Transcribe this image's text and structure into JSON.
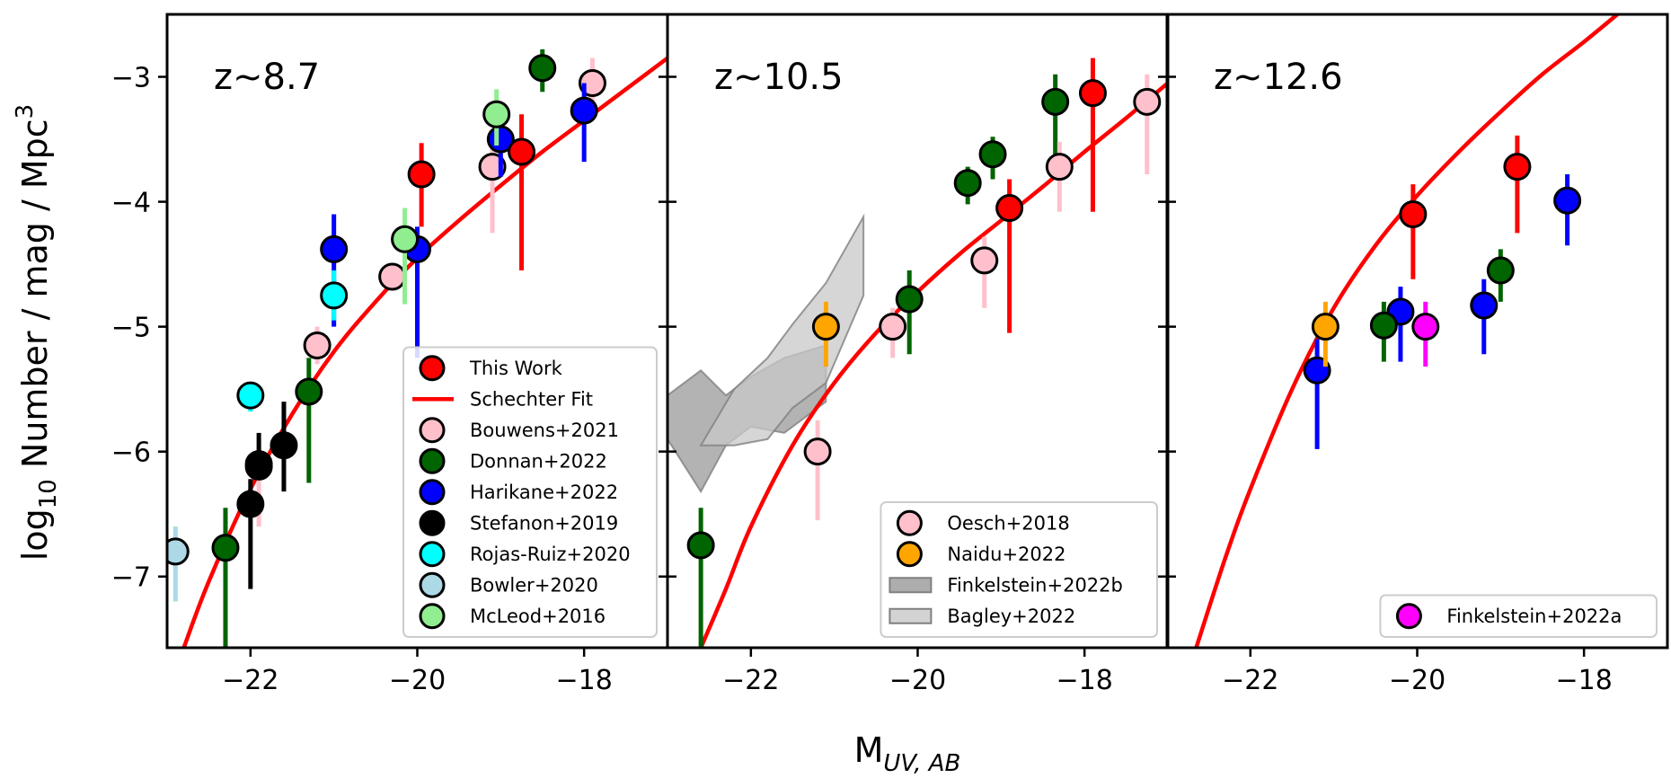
{
  "chart_data": {
    "type": "scatter",
    "x_label": {
      "main": "M",
      "sub": "UV, AB"
    },
    "y_label": {
      "prefix": "log",
      "sub": "10",
      "text": " Number / mag / Mpc",
      "sup": "3"
    },
    "xlim": [
      -23.0,
      -17.0
    ],
    "ylim": [
      -7.57,
      -2.5
    ],
    "x_ticks": [
      -22,
      -20,
      -18
    ],
    "x_tick_labels": [
      "−22",
      "−20",
      "−18"
    ],
    "y_ticks": [
      -3,
      -4,
      -5,
      -6,
      -7
    ],
    "y_tick_labels": [
      "−3",
      "−4",
      "−5",
      "−6",
      "−7"
    ],
    "colors": {
      "this_work": "#ff0000",
      "schechter": "#ff0000",
      "bouwens": "#ffc0cb",
      "donnan": "#006400",
      "harikane": "#0000ff",
      "stefanon": "#000000",
      "rojas": "#00ffff",
      "bowler": "#add8e6",
      "mcleod": "#90ee90",
      "oesch": "#ffc0cb",
      "naidu": "#ffa500",
      "finkelstein_a": "#ff00ff",
      "finkelstein_b_band": "#999999",
      "bagley_band": "#c8c8c8"
    },
    "panels": [
      {
        "label": "z~8.7",
        "schechter_curve": [
          [
            -22.8,
            -7.57
          ],
          [
            -22.5,
            -7.04
          ],
          [
            -22.0,
            -6.3
          ],
          [
            -21.5,
            -5.7
          ],
          [
            -21.0,
            -5.2
          ],
          [
            -20.5,
            -4.8
          ],
          [
            -20.0,
            -4.45
          ],
          [
            -19.5,
            -4.15
          ],
          [
            -19.0,
            -3.87
          ],
          [
            -18.5,
            -3.6
          ],
          [
            -18.0,
            -3.35
          ],
          [
            -17.5,
            -3.1
          ],
          [
            -17.0,
            -2.85
          ]
        ],
        "bands": [],
        "series": [
          {
            "name": "Bouwens+2021",
            "color_key": "bouwens",
            "points": [
              {
                "x": -21.9,
                "y": -6.1,
                "lo": -6.6,
                "hi": -5.9
              },
              {
                "x": -21.2,
                "y": -5.15,
                "lo": -5.3,
                "hi": -5.0
              },
              {
                "x": -20.3,
                "y": -4.6,
                "lo": -4.7,
                "hi": -4.5
              },
              {
                "x": -19.1,
                "y": -3.72,
                "lo": -4.25,
                "hi": -3.55
              },
              {
                "x": -17.9,
                "y": -3.05,
                "lo": -3.25,
                "hi": -2.85
              }
            ]
          },
          {
            "name": "Donnan+2022",
            "color_key": "donnan",
            "points": [
              {
                "x": -22.3,
                "y": -6.77,
                "lo": -7.6,
                "hi": -6.45
              },
              {
                "x": -21.3,
                "y": -5.52,
                "lo": -6.25,
                "hi": -5.25
              },
              {
                "x": -18.5,
                "y": -2.93,
                "lo": -3.12,
                "hi": -2.78
              }
            ]
          },
          {
            "name": "Harikane+2022",
            "color_key": "harikane",
            "points": [
              {
                "x": -21.0,
                "y": -4.38,
                "lo": -5.0,
                "hi": -4.1
              },
              {
                "x": -20.0,
                "y": -4.38,
                "lo": -5.25,
                "hi": -4.2
              },
              {
                "x": -19.0,
                "y": -3.5,
                "lo": -3.8,
                "hi": -3.35
              },
              {
                "x": -18.0,
                "y": -3.27,
                "lo": -3.68,
                "hi": -3.05
              }
            ]
          },
          {
            "name": "Stefanon+2019",
            "color_key": "stefanon",
            "points": [
              {
                "x": -22.0,
                "y": -6.42,
                "lo": -7.1,
                "hi": -6.22
              },
              {
                "x": -21.6,
                "y": -5.95,
                "lo": -6.32,
                "hi": -5.6
              },
              {
                "x": -21.9,
                "y": -6.12,
                "lo": -6.22,
                "hi": -5.85
              }
            ]
          },
          {
            "name": "Rojas-Ruiz+2020",
            "color_key": "rojas",
            "points": [
              {
                "x": -22.0,
                "y": -5.55,
                "lo": -5.68,
                "hi": -5.45
              },
              {
                "x": -21.0,
                "y": -4.75,
                "lo": -4.95,
                "hi": -4.55
              }
            ]
          },
          {
            "name": "Bowler+2020",
            "color_key": "bowler",
            "points": [
              {
                "x": -22.9,
                "y": -6.8,
                "lo": -7.2,
                "hi": -6.6
              }
            ]
          },
          {
            "name": "McLeod+2016",
            "color_key": "mcleod",
            "points": [
              {
                "x": -20.15,
                "y": -4.3,
                "lo": -4.82,
                "hi": -4.05
              },
              {
                "x": -19.05,
                "y": -3.3,
                "lo": -3.55,
                "hi": -3.1
              }
            ]
          },
          {
            "name": "This Work",
            "color_key": "this_work",
            "points": [
              {
                "x": -19.95,
                "y": -3.78,
                "lo": -4.2,
                "hi": -3.53
              },
              {
                "x": -18.75,
                "y": -3.6,
                "lo": -4.55,
                "hi": -3.3
              }
            ]
          }
        ],
        "legend": {
          "position": "lower-right",
          "entries": [
            {
              "label": "This Work",
              "kind": "marker",
              "color_key": "this_work"
            },
            {
              "label": "Schechter Fit",
              "kind": "line",
              "color_key": "schechter"
            },
            {
              "label": "Bouwens+2021",
              "kind": "marker",
              "color_key": "bouwens"
            },
            {
              "label": "Donnan+2022",
              "kind": "marker",
              "color_key": "donnan"
            },
            {
              "label": "Harikane+2022",
              "kind": "marker",
              "color_key": "harikane"
            },
            {
              "label": "Stefanon+2019",
              "kind": "marker",
              "color_key": "stefanon"
            },
            {
              "label": "Rojas-Ruiz+2020",
              "kind": "marker",
              "color_key": "rojas"
            },
            {
              "label": "Bowler+2020",
              "kind": "marker",
              "color_key": "bowler"
            },
            {
              "label": "McLeod+2016",
              "kind": "marker",
              "color_key": "mcleod"
            }
          ]
        }
      },
      {
        "label": "z~10.5",
        "schechter_curve": [
          [
            -22.6,
            -7.57
          ],
          [
            -22.3,
            -7.1
          ],
          [
            -22.0,
            -6.6
          ],
          [
            -21.5,
            -5.95
          ],
          [
            -21.0,
            -5.45
          ],
          [
            -20.5,
            -5.05
          ],
          [
            -20.0,
            -4.72
          ],
          [
            -19.5,
            -4.42
          ],
          [
            -19.0,
            -4.15
          ],
          [
            -18.5,
            -3.88
          ],
          [
            -18.0,
            -3.6
          ],
          [
            -17.5,
            -3.33
          ],
          [
            -17.0,
            -3.05
          ],
          [
            -16.8,
            -2.95
          ]
        ],
        "bands": [
          {
            "name": "Finkelstein+2022b",
            "color_key": "finkelstein_b_band",
            "opacity": 0.75,
            "x": [
              -23.0,
              -22.6,
              -22.3,
              -22.0,
              -21.6,
              -21.1
            ],
            "upper": [
              -5.55,
              -5.35,
              -5.55,
              -5.4,
              -5.25,
              -5.15
            ],
            "lower": [
              -5.9,
              -6.32,
              -5.95,
              -5.8,
              -5.85,
              -5.6
            ]
          },
          {
            "name": "Bagley+2022",
            "color_key": "bagley_band",
            "opacity": 0.75,
            "x": [
              -22.6,
              -22.2,
              -21.8,
              -21.5,
              -21.1,
              -20.65
            ],
            "upper": [
              -5.95,
              -5.5,
              -5.25,
              -4.98,
              -4.65,
              -4.12
            ],
            "lower": [
              -5.95,
              -5.95,
              -5.9,
              -5.65,
              -5.45,
              -4.75
            ]
          }
        ],
        "series": [
          {
            "name": "Donnan+2022",
            "color_key": "donnan",
            "points": [
              {
                "x": -22.6,
                "y": -6.75,
                "lo": -7.6,
                "hi": -6.45
              },
              {
                "x": -20.1,
                "y": -4.78,
                "lo": -5.22,
                "hi": -4.55
              },
              {
                "x": -19.4,
                "y": -3.85,
                "lo": -4.02,
                "hi": -3.72
              },
              {
                "x": -19.1,
                "y": -3.62,
                "lo": -3.82,
                "hi": -3.48
              },
              {
                "x": -18.35,
                "y": -3.2,
                "lo": -3.72,
                "hi": -2.98
              }
            ]
          },
          {
            "name": "Oesch+2018",
            "color_key": "oesch",
            "points": [
              {
                "x": -21.2,
                "y": -6.0,
                "lo": -6.55,
                "hi": -5.75
              },
              {
                "x": -20.3,
                "y": -5.0,
                "lo": -5.25,
                "hi": -4.85
              },
              {
                "x": -19.2,
                "y": -4.47,
                "lo": -4.85,
                "hi": -4.28
              },
              {
                "x": -18.3,
                "y": -3.72,
                "lo": -4.08,
                "hi": -3.52
              },
              {
                "x": -17.25,
                "y": -3.2,
                "lo": -3.78,
                "hi": -2.98
              }
            ]
          },
          {
            "name": "Naidu+2022",
            "color_key": "naidu",
            "points": [
              {
                "x": -21.1,
                "y": -5.0,
                "lo": -5.32,
                "hi": -4.8
              }
            ]
          },
          {
            "name": "This Work",
            "color_key": "this_work",
            "points": [
              {
                "x": -18.9,
                "y": -4.05,
                "lo": -5.05,
                "hi": -3.82
              },
              {
                "x": -17.9,
                "y": -3.13,
                "lo": -4.08,
                "hi": -2.85
              }
            ]
          }
        ],
        "legend": {
          "position": "lower-right",
          "entries": [
            {
              "label": "Oesch+2018",
              "kind": "marker",
              "color_key": "oesch"
            },
            {
              "label": "Naidu+2022",
              "kind": "marker",
              "color_key": "naidu"
            },
            {
              "label": "Finkelstein+2022b",
              "kind": "patch",
              "color_key": "finkelstein_b_band"
            },
            {
              "label": "Bagley+2022",
              "kind": "patch",
              "color_key": "bagley_band"
            }
          ]
        }
      },
      {
        "label": "z~12.6",
        "schechter_curve": [
          [
            -22.65,
            -7.57
          ],
          [
            -22.3,
            -6.85
          ],
          [
            -22.0,
            -6.3
          ],
          [
            -21.5,
            -5.5
          ],
          [
            -21.0,
            -4.85
          ],
          [
            -20.5,
            -4.35
          ],
          [
            -20.0,
            -3.95
          ],
          [
            -19.5,
            -3.6
          ],
          [
            -19.0,
            -3.28
          ],
          [
            -18.5,
            -2.98
          ],
          [
            -18.0,
            -2.72
          ],
          [
            -17.6,
            -2.5
          ]
        ],
        "bands": [],
        "series": [
          {
            "name": "Harikane+2022",
            "color_key": "harikane",
            "points": [
              {
                "x": -21.2,
                "y": -5.35,
                "lo": -5.98,
                "hi": -5.1
              },
              {
                "x": -20.2,
                "y": -4.88,
                "lo": -5.28,
                "hi": -4.68
              },
              {
                "x": -19.2,
                "y": -4.83,
                "lo": -5.22,
                "hi": -4.62
              },
              {
                "x": -18.2,
                "y": -3.99,
                "lo": -4.35,
                "hi": -3.78
              }
            ]
          },
          {
            "name": "Naidu+2022",
            "color_key": "naidu",
            "points": [
              {
                "x": -21.1,
                "y": -5.0,
                "lo": -5.32,
                "hi": -4.8
              }
            ]
          },
          {
            "name": "Donnan+2022",
            "color_key": "donnan",
            "points": [
              {
                "x": -20.4,
                "y": -4.99,
                "lo": -5.28,
                "hi": -4.8
              },
              {
                "x": -19.0,
                "y": -4.55,
                "lo": -4.8,
                "hi": -4.38
              }
            ]
          },
          {
            "name": "Finkelstein+2022a",
            "color_key": "finkelstein_a",
            "points": [
              {
                "x": -19.9,
                "y": -5.0,
                "lo": -5.32,
                "hi": -4.8
              }
            ]
          },
          {
            "name": "This Work",
            "color_key": "this_work",
            "points": [
              {
                "x": -20.05,
                "y": -4.1,
                "lo": -4.62,
                "hi": -3.86
              },
              {
                "x": -18.8,
                "y": -3.72,
                "lo": -4.25,
                "hi": -3.47
              }
            ]
          }
        ],
        "legend": {
          "position": "lower-right",
          "entries": [
            {
              "label": "Finkelstein+2022a",
              "kind": "marker",
              "color_key": "finkelstein_a"
            }
          ]
        }
      }
    ]
  }
}
